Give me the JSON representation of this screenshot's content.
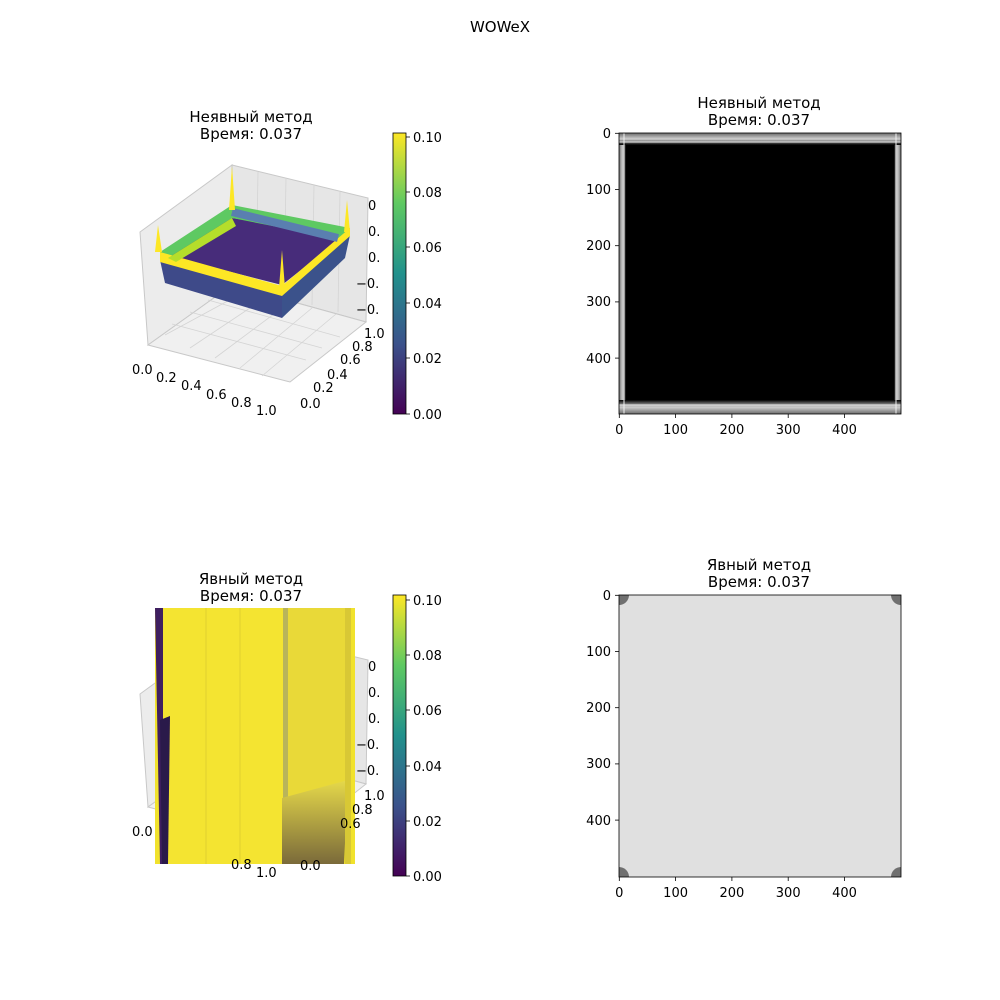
{
  "suptitle": "WOWeX",
  "colorbar_ticks": [
    "0.00",
    "0.02",
    "0.04",
    "0.06",
    "0.08",
    "0.10"
  ],
  "colors": {
    "viridis": [
      "#440154",
      "#3b528b",
      "#21918c",
      "#5ec962",
      "#fde725"
    ],
    "implicit_image_bg": "#000000",
    "implicit_image_edge": "#6e6e6e",
    "explicit_image_bg": "#e0e0e0",
    "explicit_image_corner": "#707070"
  },
  "chart_data": [
    {
      "type": "surface3d",
      "title_line1": "Неявный метод",
      "title_line2": "Время: 0.037",
      "x_ticks": [
        "0.0",
        "0.2",
        "0.4",
        "0.6",
        "0.8",
        "1.0"
      ],
      "y_ticks": [
        "0.0",
        "0.2",
        "0.4",
        "0.6",
        "0.8",
        "1.0"
      ],
      "z_ticks": [
        "0",
        "0.",
        "0.",
        "−0.",
        "−0."
      ],
      "colorbar_range": [
        0.0,
        0.1
      ]
    },
    {
      "type": "heatmap",
      "title_line1": "Неявный метод",
      "title_line2": "Время: 0.037",
      "x_ticks": [
        "0",
        "100",
        "200",
        "300",
        "400"
      ],
      "y_ticks": [
        "0",
        "100",
        "200",
        "300",
        "400"
      ],
      "extent": [
        0,
        500
      ],
      "colormap": "gray",
      "description_values": {
        "interior": 0.0,
        "boundary": 0.1
      }
    },
    {
      "type": "surface3d",
      "title_line1": "Явный метод",
      "title_line2": "Время: 0.037",
      "x_ticks": [
        "0.0",
        "0.8",
        "1.0"
      ],
      "y_ticks": [
        "0.0",
        "0.6",
        "0.8",
        "1.0"
      ],
      "z_ticks": [
        "0",
        "0.",
        "0.",
        "−0.",
        "−0."
      ],
      "colorbar_range": [
        0.0,
        0.1
      ]
    },
    {
      "type": "heatmap",
      "title_line1": "Явный метод",
      "title_line2": "Время: 0.037",
      "x_ticks": [
        "0",
        "100",
        "200",
        "300",
        "400"
      ],
      "y_ticks": [
        "0",
        "100",
        "200",
        "300",
        "400"
      ],
      "extent": [
        0,
        500
      ],
      "colormap": "gray"
    }
  ]
}
